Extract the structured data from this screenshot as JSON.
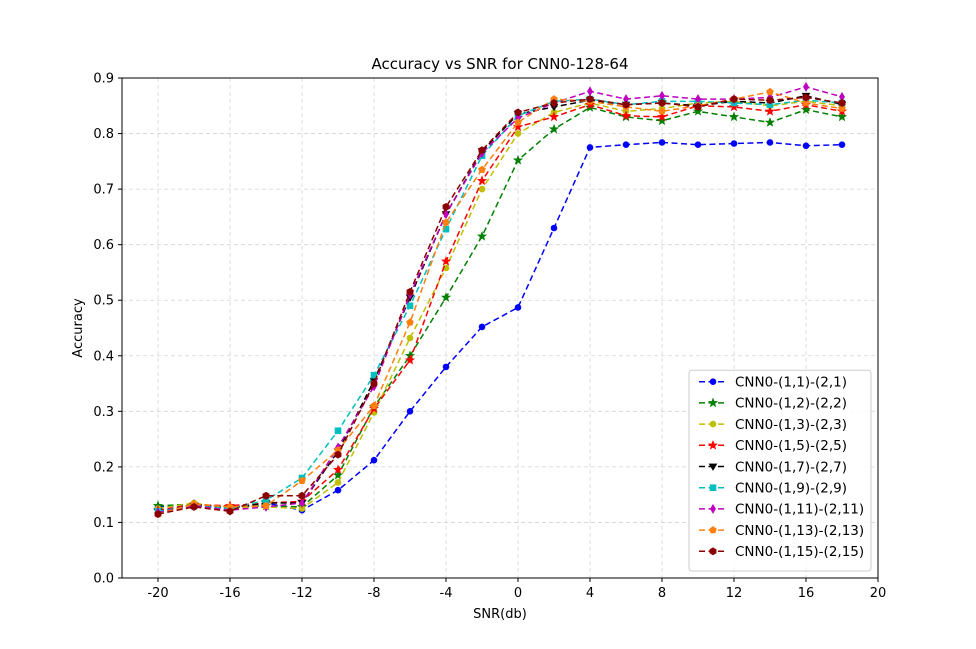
{
  "chart_data": {
    "type": "line",
    "title": "Accuracy vs SNR for CNN0-128-64",
    "xlabel": "SNR(db)",
    "ylabel": "Accuracy",
    "xlim": [
      -22,
      20
    ],
    "ylim": [
      0.0,
      0.9
    ],
    "xticks": [
      "-20",
      "-16",
      "-12",
      "-8",
      "-4",
      "0",
      "4",
      "8",
      "12",
      "16",
      "20"
    ],
    "yticks": [
      "0.0",
      "0.1",
      "0.2",
      "0.3",
      "0.4",
      "0.5",
      "0.6",
      "0.7",
      "0.8",
      "0.9"
    ],
    "grid": true,
    "legend_position": "bottom-right",
    "x": [
      -20,
      -18,
      -16,
      -14,
      -12,
      -10,
      -8,
      -6,
      -4,
      -2,
      0,
      2,
      4,
      6,
      8,
      10,
      12,
      14,
      16,
      18
    ],
    "series": [
      {
        "name": "CNN0-(1,1)-(2,1)",
        "color": "#0000ff",
        "marker": "circle",
        "values": [
          0.128,
          0.13,
          0.126,
          0.135,
          0.122,
          0.158,
          0.212,
          0.3,
          0.38,
          0.452,
          0.487,
          0.63,
          0.775,
          0.78,
          0.784,
          0.78,
          0.782,
          0.784,
          0.778,
          0.78
        ]
      },
      {
        "name": "CNN0-(1,2)-(2,2)",
        "color": "#008000",
        "marker": "star",
        "values": [
          0.13,
          0.133,
          0.128,
          0.13,
          0.128,
          0.185,
          0.308,
          0.4,
          0.505,
          0.615,
          0.752,
          0.808,
          0.847,
          0.83,
          0.823,
          0.84,
          0.83,
          0.82,
          0.843,
          0.83
        ]
      },
      {
        "name": "CNN0-(1,3)-(2,3)",
        "color": "#bfbf00",
        "marker": "circle",
        "values": [
          0.125,
          0.135,
          0.125,
          0.128,
          0.125,
          0.172,
          0.298,
          0.432,
          0.558,
          0.7,
          0.8,
          0.838,
          0.855,
          0.84,
          0.845,
          0.855,
          0.858,
          0.85,
          0.858,
          0.85
        ]
      },
      {
        "name": "CNN0-(1,5)-(2,5)",
        "color": "#ff0000",
        "marker": "star",
        "values": [
          0.122,
          0.132,
          0.13,
          0.135,
          0.138,
          0.195,
          0.305,
          0.392,
          0.57,
          0.715,
          0.812,
          0.83,
          0.852,
          0.832,
          0.83,
          0.85,
          0.848,
          0.84,
          0.852,
          0.84
        ]
      },
      {
        "name": "CNN0-(1,7)-(2,7)",
        "color": "#000000",
        "marker": "triangle-down",
        "values": [
          0.12,
          0.13,
          0.125,
          0.135,
          0.135,
          0.228,
          0.355,
          0.505,
          0.655,
          0.768,
          0.835,
          0.848,
          0.86,
          0.852,
          0.855,
          0.85,
          0.858,
          0.855,
          0.868,
          0.852
        ]
      },
      {
        "name": "CNN0-(1,9)-(2,9)",
        "color": "#00bfbf",
        "marker": "square",
        "values": [
          0.12,
          0.13,
          0.125,
          0.14,
          0.18,
          0.265,
          0.365,
          0.49,
          0.628,
          0.76,
          0.832,
          0.858,
          0.862,
          0.852,
          0.858,
          0.858,
          0.855,
          0.852,
          0.86,
          0.855
        ]
      },
      {
        "name": "CNN0-(1,11)-(2,11)",
        "color": "#bf00bf",
        "marker": "thin-diamond",
        "values": [
          0.118,
          0.13,
          0.122,
          0.128,
          0.135,
          0.235,
          0.345,
          0.51,
          0.655,
          0.765,
          0.828,
          0.855,
          0.876,
          0.862,
          0.868,
          0.862,
          0.862,
          0.865,
          0.884,
          0.866
        ]
      },
      {
        "name": "CNN0-(1,13)-(2,13)",
        "color": "#ff7f0e",
        "marker": "pentagon",
        "values": [
          0.115,
          0.133,
          0.128,
          0.13,
          0.175,
          0.23,
          0.31,
          0.46,
          0.64,
          0.735,
          0.82,
          0.862,
          0.858,
          0.848,
          0.84,
          0.85,
          0.862,
          0.875,
          0.855,
          0.845
        ]
      },
      {
        "name": "CNN0-(1,15)-(2,15)",
        "color": "#8b0000",
        "marker": "hexagon",
        "values": [
          0.115,
          0.128,
          0.12,
          0.148,
          0.148,
          0.222,
          0.35,
          0.515,
          0.668,
          0.77,
          0.838,
          0.855,
          0.862,
          0.852,
          0.855,
          0.848,
          0.862,
          0.86,
          0.865,
          0.855
        ]
      }
    ]
  }
}
